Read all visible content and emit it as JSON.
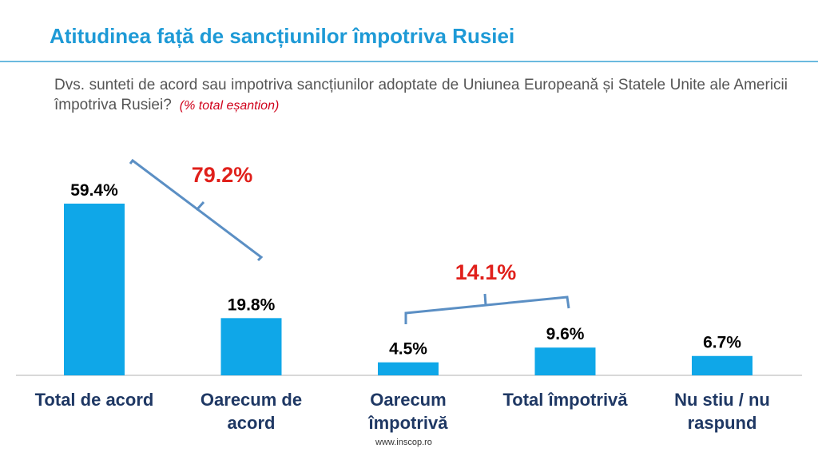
{
  "chart_data": {
    "type": "bar",
    "title": "Atitudinea față de sancțiunilor împotriva Rusiei",
    "subtitle": "Dvs. sunteti de acord sau impotriva sancțiunilor adoptate de Uniunea Europeană și Statele Unite ale Americii împotriva Rusiei?",
    "note": "(% total eșantion)",
    "categories": [
      "Total de acord",
      "Oarecum de acord",
      "Oarecum împotrivă",
      "Total împotrivă",
      "Nu stiu / nu raspund"
    ],
    "values": [
      59.4,
      19.8,
      4.5,
      9.6,
      6.7
    ],
    "value_labels": [
      "59.4%",
      "19.8%",
      "4.5%",
      "9.6%",
      "6.7%"
    ],
    "color": "#0fa7e8",
    "annotations": [
      "79.2%",
      "14.1%"
    ],
    "source": "www.inscop.ro"
  }
}
